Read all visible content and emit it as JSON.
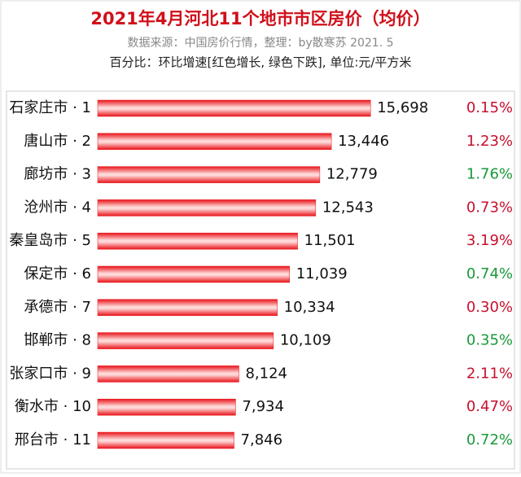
{
  "chart_data": {
    "type": "bar",
    "orientation": "horizontal",
    "title": "2021年4月河北11个地市市区房价（均价）",
    "subtitle": "数据来源：中国房价行情，整理：by散寒苏  2021. 5",
    "note": "百分比：环比增速[红色增长, 绿色下跌], 单位:元/平方米",
    "categories": [
      "石家庄市 · 1",
      "唐山市 · 2",
      "廊坊市 · 3",
      "沧州市 · 4",
      "秦皇岛市 · 5",
      "保定市 · 6",
      "承德市 · 7",
      "邯郸市 · 8",
      "张家口市 · 9",
      "衡水市 · 10",
      "邢台市 · 11"
    ],
    "values": [
      15698,
      13446,
      12779,
      12543,
      11501,
      11039,
      10334,
      10109,
      8124,
      7934,
      7846
    ],
    "value_labels": [
      "15,698",
      "13,446",
      "12,779",
      "12,543",
      "11,501",
      "11,039",
      "10,334",
      "10,109",
      "8,124",
      "7,934",
      "7,846"
    ],
    "color": "#e8141a",
    "xlim": [
      0,
      17000
    ],
    "changes": {
      "values": [
        0.15,
        1.23,
        1.76,
        0.73,
        3.19,
        0.74,
        0.3,
        0.35,
        2.11,
        0.47,
        0.72
      ],
      "value_labels": [
        "0.15%",
        "1.23%",
        "1.76%",
        "0.73%",
        "3.19%",
        "0.74%",
        "0.30%",
        "0.35%",
        "2.11%",
        "0.47%",
        "0.72%"
      ],
      "colors": [
        "#c8102e",
        "#c8102e",
        "#1a9a3a",
        "#c8102e",
        "#c8102e",
        "#1a9a3a",
        "#c8102e",
        "#1a9a3a",
        "#c8102e",
        "#c8102e",
        "#1a9a3a"
      ]
    }
  }
}
